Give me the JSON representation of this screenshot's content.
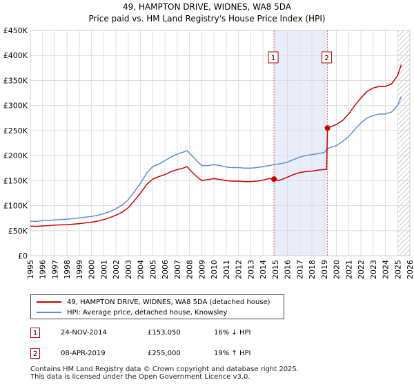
{
  "chart_data": {
    "type": "line",
    "title": "49, HAMPTON DRIVE, WIDNES, WA8 5DA",
    "subtitle": "Price paid vs. HM Land Registry's House Price Index (HPI)",
    "xlabel": "",
    "ylabel": "",
    "xlim": [
      1995,
      2026
    ],
    "ylim": [
      0,
      450000
    ],
    "x_ticks": [
      "1995",
      "1996",
      "1997",
      "1998",
      "1999",
      "2000",
      "2001",
      "2002",
      "2003",
      "2004",
      "2005",
      "2006",
      "2007",
      "2008",
      "2009",
      "2010",
      "2011",
      "2012",
      "2013",
      "2014",
      "2015",
      "2016",
      "2017",
      "2018",
      "2019",
      "2020",
      "2021",
      "2022",
      "2023",
      "2024",
      "2025",
      "2026"
    ],
    "y_ticks": [
      {
        "value": 0,
        "label": "£0"
      },
      {
        "value": 50000,
        "label": "£50K"
      },
      {
        "value": 100000,
        "label": "£100K"
      },
      {
        "value": 150000,
        "label": "£150K"
      },
      {
        "value": 200000,
        "label": "£200K"
      },
      {
        "value": 250000,
        "label": "£250K"
      },
      {
        "value": 300000,
        "label": "£300K"
      },
      {
        "value": 350000,
        "label": "£350K"
      },
      {
        "value": 400000,
        "label": "£400K"
      },
      {
        "value": 450000,
        "label": "£450K"
      }
    ],
    "grid": true,
    "shaded_range": [
      2014.9,
      2019.27
    ],
    "hatched_after": 2025.0,
    "series": [
      {
        "name": "49, HAMPTON DRIVE, WIDNES, WA8 5DA (detached house)",
        "color": "#cc0000",
        "points": [
          [
            1995.0,
            59000
          ],
          [
            1995.5,
            58500
          ],
          [
            1996.0,
            59500
          ],
          [
            1996.5,
            60000
          ],
          [
            1997.0,
            61000
          ],
          [
            1997.5,
            61500
          ],
          [
            1998.0,
            62000
          ],
          [
            1998.5,
            63000
          ],
          [
            1999.0,
            64000
          ],
          [
            1999.5,
            65500
          ],
          [
            2000.0,
            67000
          ],
          [
            2000.5,
            69000
          ],
          [
            2001.0,
            72000
          ],
          [
            2001.5,
            76000
          ],
          [
            2002.0,
            81000
          ],
          [
            2002.5,
            87000
          ],
          [
            2003.0,
            96000
          ],
          [
            2003.5,
            110000
          ],
          [
            2004.0,
            125000
          ],
          [
            2004.5,
            142000
          ],
          [
            2005.0,
            153000
          ],
          [
            2005.5,
            158000
          ],
          [
            2006.0,
            162000
          ],
          [
            2006.5,
            168000
          ],
          [
            2007.0,
            172000
          ],
          [
            2007.5,
            175000
          ],
          [
            2007.8,
            178000
          ],
          [
            2008.0,
            172000
          ],
          [
            2008.5,
            160000
          ],
          [
            2009.0,
            150000
          ],
          [
            2009.5,
            152000
          ],
          [
            2010.0,
            154000
          ],
          [
            2010.5,
            152000
          ],
          [
            2011.0,
            150000
          ],
          [
            2011.5,
            149000
          ],
          [
            2012.0,
            149000
          ],
          [
            2012.5,
            148000
          ],
          [
            2013.0,
            148000
          ],
          [
            2013.5,
            149000
          ],
          [
            2014.0,
            151000
          ],
          [
            2014.5,
            154000
          ],
          [
            2014.9,
            153050
          ],
          [
            2015.3,
            150000
          ],
          [
            2015.7,
            154000
          ],
          [
            2016.0,
            157000
          ],
          [
            2016.5,
            162000
          ],
          [
            2017.0,
            166000
          ],
          [
            2017.5,
            168000
          ],
          [
            2018.0,
            169000
          ],
          [
            2018.5,
            171000
          ],
          [
            2019.0,
            172000
          ],
          [
            2019.2,
            173000
          ],
          [
            2019.27,
            255000
          ],
          [
            2019.5,
            257000
          ],
          [
            2020.0,
            262000
          ],
          [
            2020.5,
            270000
          ],
          [
            2021.0,
            283000
          ],
          [
            2021.5,
            300000
          ],
          [
            2022.0,
            315000
          ],
          [
            2022.5,
            328000
          ],
          [
            2023.0,
            335000
          ],
          [
            2023.5,
            338000
          ],
          [
            2024.0,
            338000
          ],
          [
            2024.5,
            343000
          ],
          [
            2025.0,
            360000
          ],
          [
            2025.3,
            382000
          ]
        ]
      },
      {
        "name": "HPI: Average price, detached house, Knowsley",
        "color": "#5b8fd0",
        "points": [
          [
            1995.0,
            69000
          ],
          [
            1995.5,
            68500
          ],
          [
            1996.0,
            70000
          ],
          [
            1996.5,
            70500
          ],
          [
            1997.0,
            71500
          ],
          [
            1997.5,
            72000
          ],
          [
            1998.0,
            73000
          ],
          [
            1998.5,
            74000
          ],
          [
            1999.0,
            75500
          ],
          [
            1999.5,
            77000
          ],
          [
            2000.0,
            78500
          ],
          [
            2000.5,
            80500
          ],
          [
            2001.0,
            84000
          ],
          [
            2001.5,
            88000
          ],
          [
            2002.0,
            94000
          ],
          [
            2002.5,
            101000
          ],
          [
            2003.0,
            112000
          ],
          [
            2003.5,
            128000
          ],
          [
            2004.0,
            145000
          ],
          [
            2004.5,
            165000
          ],
          [
            2005.0,
            178000
          ],
          [
            2005.5,
            183000
          ],
          [
            2006.0,
            190000
          ],
          [
            2006.5,
            197000
          ],
          [
            2007.0,
            203000
          ],
          [
            2007.5,
            207000
          ],
          [
            2007.8,
            210000
          ],
          [
            2008.0,
            205000
          ],
          [
            2008.5,
            192000
          ],
          [
            2009.0,
            180000
          ],
          [
            2009.5,
            180000
          ],
          [
            2010.0,
            182000
          ],
          [
            2010.5,
            180000
          ],
          [
            2011.0,
            177000
          ],
          [
            2011.5,
            176000
          ],
          [
            2012.0,
            176000
          ],
          [
            2012.5,
            175000
          ],
          [
            2013.0,
            175000
          ],
          [
            2013.5,
            176000
          ],
          [
            2014.0,
            178000
          ],
          [
            2014.5,
            180000
          ],
          [
            2014.9,
            182000
          ],
          [
            2015.5,
            184000
          ],
          [
            2016.0,
            187000
          ],
          [
            2016.5,
            192000
          ],
          [
            2017.0,
            197000
          ],
          [
            2017.5,
            200000
          ],
          [
            2018.0,
            202000
          ],
          [
            2018.5,
            204000
          ],
          [
            2019.0,
            206000
          ],
          [
            2019.27,
            214000
          ],
          [
            2019.5,
            216000
          ],
          [
            2020.0,
            220000
          ],
          [
            2020.5,
            228000
          ],
          [
            2021.0,
            238000
          ],
          [
            2021.5,
            252000
          ],
          [
            2022.0,
            265000
          ],
          [
            2022.5,
            275000
          ],
          [
            2023.0,
            280000
          ],
          [
            2023.5,
            283000
          ],
          [
            2024.0,
            283000
          ],
          [
            2024.5,
            287000
          ],
          [
            2025.0,
            300000
          ],
          [
            2025.3,
            318000
          ]
        ]
      }
    ],
    "annotations": [
      {
        "label": "1",
        "x": 2014.9,
        "y": 153050
      },
      {
        "label": "2",
        "x": 2019.27,
        "y": 255000
      }
    ]
  },
  "legend": {
    "property_label": "49, HAMPTON DRIVE, WIDNES, WA8 5DA (detached house)",
    "hpi_label": "HPI: Average price, detached house, Knowsley"
  },
  "sales": [
    {
      "num": "1",
      "date": "24-NOV-2014",
      "price": "£153,050",
      "hpi": "16% ↓ HPI"
    },
    {
      "num": "2",
      "date": "08-APR-2019",
      "price": "£255,000",
      "hpi": "19% ↑ HPI"
    }
  ],
  "footer": {
    "line1": "Contains HM Land Registry data © Crown copyright and database right 2025.",
    "line2": "This data is licensed under the Open Government Licence v3.0."
  }
}
